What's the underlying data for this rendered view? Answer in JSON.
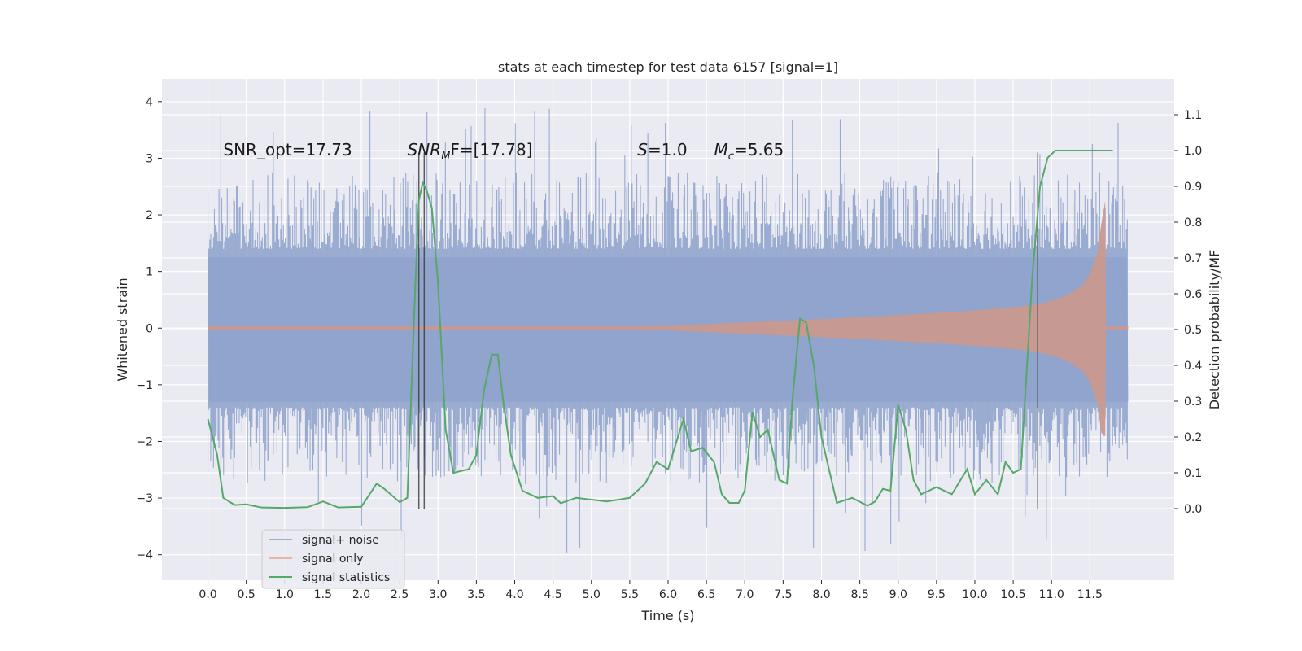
{
  "chart_data": {
    "type": "line",
    "title": "stats at each timestep for test data 6157 [signal=1]",
    "xlabel": "Time (s)",
    "ylabel": "Whitened strain",
    "y2label": "Detection probability/MF",
    "xlim": [
      -0.6,
      12.6
    ],
    "ylim": [
      -4.45,
      4.4
    ],
    "y2lim": [
      -0.2,
      1.2
    ],
    "x_ticks": [
      0.0,
      0.5,
      1.0,
      1.5,
      2.0,
      2.5,
      3.0,
      3.5,
      4.0,
      4.5,
      5.0,
      5.5,
      6.0,
      6.5,
      7.0,
      7.5,
      8.0,
      8.5,
      9.0,
      9.5,
      10.0,
      10.5,
      11.0,
      11.5
    ],
    "x_tick_labels": [
      "0.0",
      "0.5",
      "1.0",
      "1.5",
      "2.0",
      "2.5",
      "3.0",
      "3.5",
      "4.0",
      "4.5",
      "5.0",
      "5.5",
      "6.0",
      "6.5",
      "7.0",
      "7.5",
      "8.0",
      "8.5",
      "9.0",
      "9.5",
      "10.0",
      "10.5",
      "11.0",
      "11.5"
    ],
    "y_ticks": [
      4,
      3,
      2,
      1,
      0,
      -1,
      -2,
      -3,
      -4
    ],
    "y_tick_labels": [
      "4",
      "3",
      "2",
      "1",
      "0",
      "−1",
      "−2",
      "−3",
      "−4"
    ],
    "y2_ticks": [
      1.1,
      1.0,
      0.9,
      0.8,
      0.7,
      0.6,
      0.5,
      0.4,
      0.3,
      0.2,
      0.1,
      0.0
    ],
    "y2_tick_labels": [
      "1.1",
      "1.0",
      "0.9",
      "0.8",
      "0.7",
      "0.6",
      "0.5",
      "0.4",
      "0.3",
      "0.2",
      "0.1",
      "0.0"
    ],
    "legend_position": "lower-left",
    "grid": true,
    "series": [
      {
        "name": "signal+ noise",
        "color": "#4c72b0",
        "axis": "left",
        "style": "noise band, approx ±1.3 to ±2.5 with spikes to ±4"
      },
      {
        "name": "signal only",
        "color": "#dd8452",
        "axis": "left",
        "envelope_t": [
          0.0,
          1.0,
          2.0,
          3.0,
          4.0,
          5.0,
          5.5,
          6.0,
          6.5,
          7.0,
          7.5,
          8.0,
          8.5,
          9.0,
          9.5,
          10.0,
          10.5,
          10.8,
          11.0,
          11.2,
          11.4,
          11.5,
          11.6,
          11.65,
          11.7,
          11.71,
          12.0
        ],
        "envelope_amp": [
          0.03,
          0.03,
          0.03,
          0.03,
          0.03,
          0.03,
          0.03,
          0.04,
          0.07,
          0.1,
          0.13,
          0.16,
          0.19,
          0.23,
          0.27,
          0.31,
          0.37,
          0.42,
          0.48,
          0.58,
          0.75,
          0.95,
          1.35,
          1.85,
          2.25,
          0.03,
          0.03
        ]
      },
      {
        "name": "signal statistics",
        "color": "#55a868",
        "axis": "right",
        "t": [
          0.0,
          0.12,
          0.2,
          0.35,
          0.5,
          0.7,
          1.0,
          1.3,
          1.5,
          1.7,
          2.0,
          2.2,
          2.3,
          2.5,
          2.6,
          2.7,
          2.75,
          2.8,
          2.85,
          2.92,
          3.0,
          3.1,
          3.2,
          3.3,
          3.4,
          3.5,
          3.6,
          3.7,
          3.78,
          3.85,
          3.95,
          4.1,
          4.3,
          4.5,
          4.6,
          4.8,
          5.0,
          5.2,
          5.5,
          5.7,
          5.85,
          6.0,
          6.1,
          6.2,
          6.3,
          6.45,
          6.6,
          6.7,
          6.8,
          6.92,
          7.0,
          7.1,
          7.2,
          7.3,
          7.45,
          7.55,
          7.62,
          7.72,
          7.8,
          7.9,
          8.0,
          8.2,
          8.4,
          8.6,
          8.7,
          8.8,
          8.9,
          9.0,
          9.1,
          9.2,
          9.3,
          9.5,
          9.7,
          9.9,
          10.0,
          10.15,
          10.3,
          10.4,
          10.5,
          10.6,
          10.75,
          10.85,
          10.95,
          11.05,
          11.2,
          11.4,
          11.6,
          11.8
        ],
        "p": [
          0.25,
          0.15,
          0.03,
          0.01,
          0.012,
          0.003,
          0.002,
          0.004,
          0.02,
          0.003,
          0.005,
          0.07,
          0.055,
          0.018,
          0.03,
          0.6,
          0.86,
          0.91,
          0.89,
          0.84,
          0.63,
          0.22,
          0.1,
          0.105,
          0.11,
          0.15,
          0.33,
          0.43,
          0.43,
          0.3,
          0.15,
          0.05,
          0.03,
          0.035,
          0.015,
          0.03,
          0.025,
          0.02,
          0.03,
          0.07,
          0.13,
          0.11,
          0.18,
          0.25,
          0.16,
          0.17,
          0.13,
          0.04,
          0.016,
          0.016,
          0.05,
          0.27,
          0.2,
          0.22,
          0.08,
          0.07,
          0.3,
          0.53,
          0.52,
          0.4,
          0.2,
          0.016,
          0.03,
          0.008,
          0.02,
          0.055,
          0.05,
          0.29,
          0.22,
          0.08,
          0.04,
          0.06,
          0.04,
          0.11,
          0.04,
          0.08,
          0.04,
          0.13,
          0.1,
          0.11,
          0.65,
          0.9,
          0.98,
          1.0,
          1.0,
          1.0,
          1.0,
          1.0
        ]
      }
    ],
    "vertical_lines_t": [
      2.75,
      2.82,
      10.82
    ],
    "vertical_lines_range": [
      -3.2,
      3.1
    ],
    "annotations": [
      {
        "text": "SNR_opt=17.73",
        "t": 0.2,
        "y": 3.15
      },
      {
        "text_main": "SNR",
        "text_sub": "M",
        "text_rest": "F=[17.78]",
        "t": 2.6,
        "y": 3.15
      },
      {
        "text_main": "S",
        "text_rest": "=1.0",
        "t": 5.6,
        "y": 3.15
      },
      {
        "text_main": "M",
        "text_sub": "c",
        "text_rest": "=5.65",
        "t": 6.6,
        "y": 3.15
      }
    ]
  }
}
